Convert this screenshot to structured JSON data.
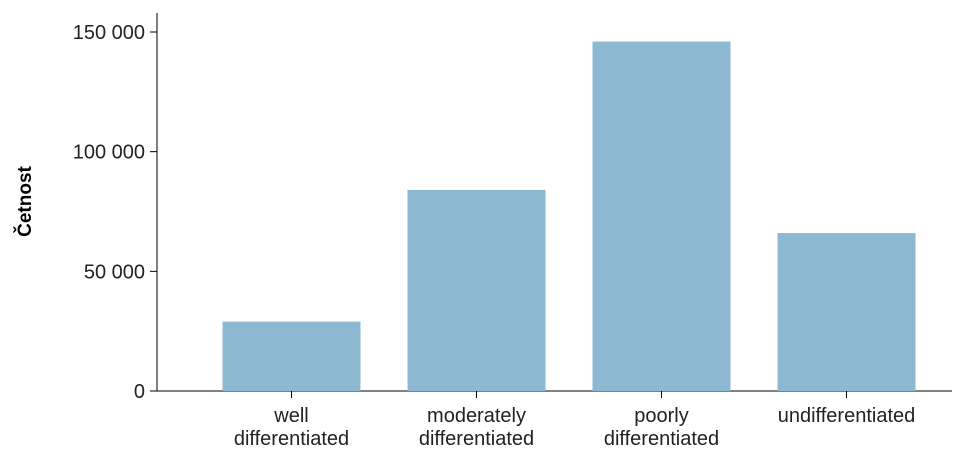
{
  "chart_data": {
    "type": "bar",
    "title": "",
    "xlabel": "",
    "ylabel": "Četnost",
    "categories": [
      [
        "well",
        "differentiated"
      ],
      [
        "moderately",
        "differentiated"
      ],
      [
        "poorly",
        "differentiated"
      ],
      [
        "undifferentiated"
      ]
    ],
    "values": [
      29000,
      84000,
      146000,
      66000
    ],
    "ylim": [
      0,
      150000
    ],
    "yticks": [
      0,
      50000,
      100000,
      150000
    ],
    "ytick_labels": [
      "0",
      "50 000",
      "100 000",
      "150 000"
    ],
    "grid": false,
    "legend": "none",
    "bar_color": "#8db8d2"
  }
}
